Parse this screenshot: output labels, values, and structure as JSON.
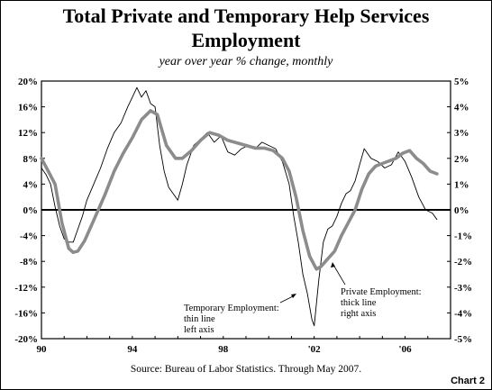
{
  "header": {
    "title_line1": "Total Private and Temporary Help Services",
    "title_line2": "Employment",
    "subtitle": "year over year % change, monthly"
  },
  "footer": {
    "source": "Source: Bureau of Labor Statistics. Through May 2007.",
    "chart_label": "Chart 2"
  },
  "colors": {
    "thin_line": "#000000",
    "thick_line": "#8c8c8c",
    "axis": "#000000"
  },
  "annotations": {
    "temp": [
      "Temporary Employment:",
      "thin line",
      "left axis"
    ],
    "private": [
      "Private Employment:",
      "thick line",
      "right axis"
    ]
  },
  "chart_data": {
    "type": "line",
    "title": "Total Private and Temporary Help Services Employment",
    "subtitle": "year over year % change, monthly",
    "x_tick_labels": [
      "90",
      "94",
      "98",
      "'02",
      "'06"
    ],
    "x_tick_years": [
      1990,
      1994,
      1998,
      2002,
      2006
    ],
    "x_range": [
      1990,
      2008
    ],
    "y_left_ticks": [
      "20%",
      "16%",
      "12%",
      "8%",
      "4%",
      "0%",
      "-4%",
      "-8%",
      "-12%",
      "-16%",
      "-20%"
    ],
    "y_right_ticks": [
      "5%",
      "4%",
      "3%",
      "2%",
      "1%",
      "0%",
      "-1%",
      "-2%",
      "-3%",
      "-4%",
      "-5%"
    ],
    "ylim_left": [
      -20,
      20
    ],
    "ylim_right": [
      -5,
      5
    ],
    "zero_line": true,
    "grid": false,
    "series": [
      {
        "name": "Temporary Employment",
        "axis": "left",
        "style": "thin",
        "points": [
          [
            1990.0,
            6.5
          ],
          [
            1990.2,
            5.5
          ],
          [
            1990.4,
            4.0
          ],
          [
            1990.6,
            0.5
          ],
          [
            1990.8,
            -2.5
          ],
          [
            1991.0,
            -4.5
          ],
          [
            1991.2,
            -5.0
          ],
          [
            1991.4,
            -5.0
          ],
          [
            1991.6,
            -3.0
          ],
          [
            1991.8,
            -1.0
          ],
          [
            1992.0,
            1.5
          ],
          [
            1992.3,
            4.0
          ],
          [
            1992.6,
            6.5
          ],
          [
            1992.9,
            9.5
          ],
          [
            1993.2,
            12.0
          ],
          [
            1993.5,
            13.5
          ],
          [
            1993.8,
            16.0
          ],
          [
            1994.0,
            17.5
          ],
          [
            1994.2,
            19.0
          ],
          [
            1994.4,
            17.5
          ],
          [
            1994.6,
            18.5
          ],
          [
            1994.8,
            16.5
          ],
          [
            1995.0,
            16.0
          ],
          [
            1995.2,
            10.0
          ],
          [
            1995.4,
            6.0
          ],
          [
            1995.6,
            3.5
          ],
          [
            1995.8,
            2.5
          ],
          [
            1996.0,
            1.5
          ],
          [
            1996.2,
            4.0
          ],
          [
            1996.4,
            7.0
          ],
          [
            1996.7,
            10.0
          ],
          [
            1997.0,
            11.0
          ],
          [
            1997.3,
            12.0
          ],
          [
            1997.6,
            10.5
          ],
          [
            1997.9,
            11.5
          ],
          [
            1998.2,
            9.0
          ],
          [
            1998.5,
            8.5
          ],
          [
            1998.8,
            9.5
          ],
          [
            1999.1,
            10.0
          ],
          [
            1999.4,
            9.5
          ],
          [
            1999.7,
            10.5
          ],
          [
            2000.0,
            10.0
          ],
          [
            2000.3,
            9.5
          ],
          [
            2000.6,
            7.5
          ],
          [
            2000.9,
            4.0
          ],
          [
            2001.1,
            -1.0
          ],
          [
            2001.3,
            -5.0
          ],
          [
            2001.5,
            -10.0
          ],
          [
            2001.7,
            -13.0
          ],
          [
            2001.9,
            -17.0
          ],
          [
            2002.0,
            -18.0
          ],
          [
            2002.2,
            -11.0
          ],
          [
            2002.4,
            -5.0
          ],
          [
            2002.6,
            -3.0
          ],
          [
            2002.8,
            -2.5
          ],
          [
            2003.0,
            -1.0
          ],
          [
            2003.2,
            1.0
          ],
          [
            2003.4,
            2.5
          ],
          [
            2003.6,
            3.0
          ],
          [
            2003.8,
            4.5
          ],
          [
            2004.0,
            7.0
          ],
          [
            2004.2,
            9.5
          ],
          [
            2004.5,
            8.0
          ],
          [
            2004.8,
            7.5
          ],
          [
            2005.1,
            6.5
          ],
          [
            2005.4,
            7.0
          ],
          [
            2005.7,
            9.0
          ],
          [
            2006.0,
            7.5
          ],
          [
            2006.3,
            5.0
          ],
          [
            2006.6,
            2.0
          ],
          [
            2006.9,
            0.0
          ],
          [
            2007.2,
            -0.5
          ],
          [
            2007.4,
            -1.5
          ]
        ]
      },
      {
        "name": "Private Employment",
        "axis": "right",
        "style": "thick",
        "points": [
          [
            1990.0,
            2.0
          ],
          [
            1990.3,
            1.5
          ],
          [
            1990.6,
            1.0
          ],
          [
            1990.9,
            -0.5
          ],
          [
            1991.2,
            -1.5
          ],
          [
            1991.4,
            -1.65
          ],
          [
            1991.6,
            -1.6
          ],
          [
            1991.9,
            -1.2
          ],
          [
            1992.2,
            -0.6
          ],
          [
            1992.5,
            0.0
          ],
          [
            1992.8,
            0.6
          ],
          [
            1993.2,
            1.5
          ],
          [
            1993.6,
            2.2
          ],
          [
            1994.0,
            2.8
          ],
          [
            1994.4,
            3.5
          ],
          [
            1994.8,
            3.85
          ],
          [
            1995.1,
            3.7
          ],
          [
            1995.5,
            2.5
          ],
          [
            1995.9,
            2.0
          ],
          [
            1996.2,
            2.0
          ],
          [
            1996.6,
            2.3
          ],
          [
            1997.0,
            2.7
          ],
          [
            1997.4,
            3.0
          ],
          [
            1997.8,
            2.9
          ],
          [
            1998.2,
            2.7
          ],
          [
            1998.6,
            2.6
          ],
          [
            1999.0,
            2.5
          ],
          [
            1999.4,
            2.4
          ],
          [
            1999.8,
            2.4
          ],
          [
            2000.2,
            2.3
          ],
          [
            2000.6,
            2.0
          ],
          [
            2000.9,
            1.5
          ],
          [
            2001.2,
            0.5
          ],
          [
            2001.5,
            -0.8
          ],
          [
            2001.8,
            -1.8
          ],
          [
            2002.1,
            -2.3
          ],
          [
            2002.3,
            -2.2
          ],
          [
            2002.6,
            -1.9
          ],
          [
            2002.9,
            -1.6
          ],
          [
            2003.2,
            -1.0
          ],
          [
            2003.5,
            -0.5
          ],
          [
            2003.8,
            0.0
          ],
          [
            2004.1,
            0.8
          ],
          [
            2004.4,
            1.4
          ],
          [
            2004.7,
            1.7
          ],
          [
            2005.0,
            1.8
          ],
          [
            2005.3,
            1.9
          ],
          [
            2005.6,
            2.0
          ],
          [
            2005.9,
            2.2
          ],
          [
            2006.2,
            2.3
          ],
          [
            2006.5,
            2.0
          ],
          [
            2006.8,
            1.8
          ],
          [
            2007.1,
            1.5
          ],
          [
            2007.4,
            1.4
          ]
        ]
      }
    ]
  }
}
